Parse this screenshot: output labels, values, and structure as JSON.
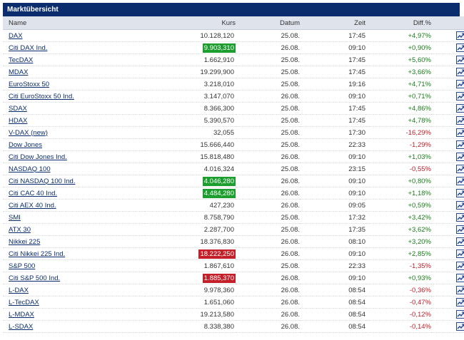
{
  "title": "Marktübersicht",
  "columns": {
    "name": "Name",
    "kurs": "Kurs",
    "datum": "Datum",
    "zeit": "Zeit",
    "diff": "Diff.%"
  },
  "icon": "chart-icon",
  "colors": {
    "header_bg": "#0b2d6e",
    "positive": "#1a7d1a",
    "negative": "#c5202a",
    "highlight_up": "#1c9e2e",
    "highlight_down": "#c5202a"
  },
  "rows": [
    {
      "name": "DAX",
      "kurs": "10.128,120",
      "datum": "25.08.",
      "zeit": "17:45",
      "diff": "+4,97%",
      "hl": ""
    },
    {
      "name": "Citi DAX Ind.",
      "kurs": "9.903,310",
      "datum": "26.08.",
      "zeit": "09:10",
      "diff": "+0,90%",
      "hl": "up"
    },
    {
      "name": "TecDAX",
      "kurs": "1.662,910",
      "datum": "25.08.",
      "zeit": "17:45",
      "diff": "+5,60%",
      "hl": ""
    },
    {
      "name": "MDAX",
      "kurs": "19.299,900",
      "datum": "25.08.",
      "zeit": "17:45",
      "diff": "+3,66%",
      "hl": ""
    },
    {
      "name": "EuroStoxx 50",
      "kurs": "3.218,010",
      "datum": "25.08.",
      "zeit": "19:16",
      "diff": "+4,71%",
      "hl": ""
    },
    {
      "name": "Citi EuroStoxx 50 Ind.",
      "kurs": "3.147,070",
      "datum": "26.08.",
      "zeit": "09:10",
      "diff": "+0,71%",
      "hl": ""
    },
    {
      "name": "SDAX",
      "kurs": "8.366,300",
      "datum": "25.08.",
      "zeit": "17:45",
      "diff": "+4,86%",
      "hl": ""
    },
    {
      "name": "HDAX",
      "kurs": "5.390,570",
      "datum": "25.08.",
      "zeit": "17:45",
      "diff": "+4,78%",
      "hl": ""
    },
    {
      "name": "V-DAX (new)",
      "kurs": "32,055",
      "datum": "25.08.",
      "zeit": "17:30",
      "diff": "-16,29%",
      "hl": ""
    },
    {
      "name": "Dow Jones",
      "kurs": "15.666,440",
      "datum": "25.08.",
      "zeit": "22:33",
      "diff": "-1,29%",
      "hl": ""
    },
    {
      "name": "Citi Dow Jones Ind.",
      "kurs": "15.818,480",
      "datum": "26.08.",
      "zeit": "09:10",
      "diff": "+1,03%",
      "hl": ""
    },
    {
      "name": "NASDAQ 100",
      "kurs": "4.016,324",
      "datum": "25.08.",
      "zeit": "23:15",
      "diff": "-0,55%",
      "hl": ""
    },
    {
      "name": "Citi NASDAQ 100 Ind.",
      "kurs": "4.046,280",
      "datum": "26.08.",
      "zeit": "09:10",
      "diff": "+0,80%",
      "hl": "up"
    },
    {
      "name": "Citi CAC 40 Ind.",
      "kurs": "4.484,280",
      "datum": "26.08.",
      "zeit": "09:10",
      "diff": "+1,18%",
      "hl": "up"
    },
    {
      "name": "Citi AEX 40 Ind.",
      "kurs": "427,230",
      "datum": "26.08.",
      "zeit": "09:05",
      "diff": "+0,59%",
      "hl": ""
    },
    {
      "name": "SMI",
      "kurs": "8.758,790",
      "datum": "25.08.",
      "zeit": "17:32",
      "diff": "+3,42%",
      "hl": ""
    },
    {
      "name": "ATX 30",
      "kurs": "2.287,700",
      "datum": "25.08.",
      "zeit": "17:35",
      "diff": "+3,62%",
      "hl": ""
    },
    {
      "name": "Nikkei 225",
      "kurs": "18.376,830",
      "datum": "26.08.",
      "zeit": "08:10",
      "diff": "+3,20%",
      "hl": ""
    },
    {
      "name": "Citi Nikkei 225 Ind.",
      "kurs": "18.222,250",
      "datum": "26.08.",
      "zeit": "09:10",
      "diff": "+2,85%",
      "hl": "down"
    },
    {
      "name": "S&P 500",
      "kurs": "1.867,610",
      "datum": "25.08.",
      "zeit": "22:33",
      "diff": "-1,35%",
      "hl": ""
    },
    {
      "name": "Citi S&P 500 Ind.",
      "kurs": "1.885,370",
      "datum": "26.08.",
      "zeit": "09:10",
      "diff": "+0,93%",
      "hl": "down"
    },
    {
      "name": "L-DAX",
      "kurs": "9.978,360",
      "datum": "26.08.",
      "zeit": "08:54",
      "diff": "-0,36%",
      "hl": ""
    },
    {
      "name": "L-TecDAX",
      "kurs": "1.651,060",
      "datum": "26.08.",
      "zeit": "08:54",
      "diff": "-0,47%",
      "hl": ""
    },
    {
      "name": "L-MDAX",
      "kurs": "19.213,580",
      "datum": "26.08.",
      "zeit": "08:54",
      "diff": "-0,12%",
      "hl": ""
    },
    {
      "name": "L-SDAX",
      "kurs": "8.338,380",
      "datum": "26.08.",
      "zeit": "08:54",
      "diff": "-0,14%",
      "hl": ""
    }
  ]
}
